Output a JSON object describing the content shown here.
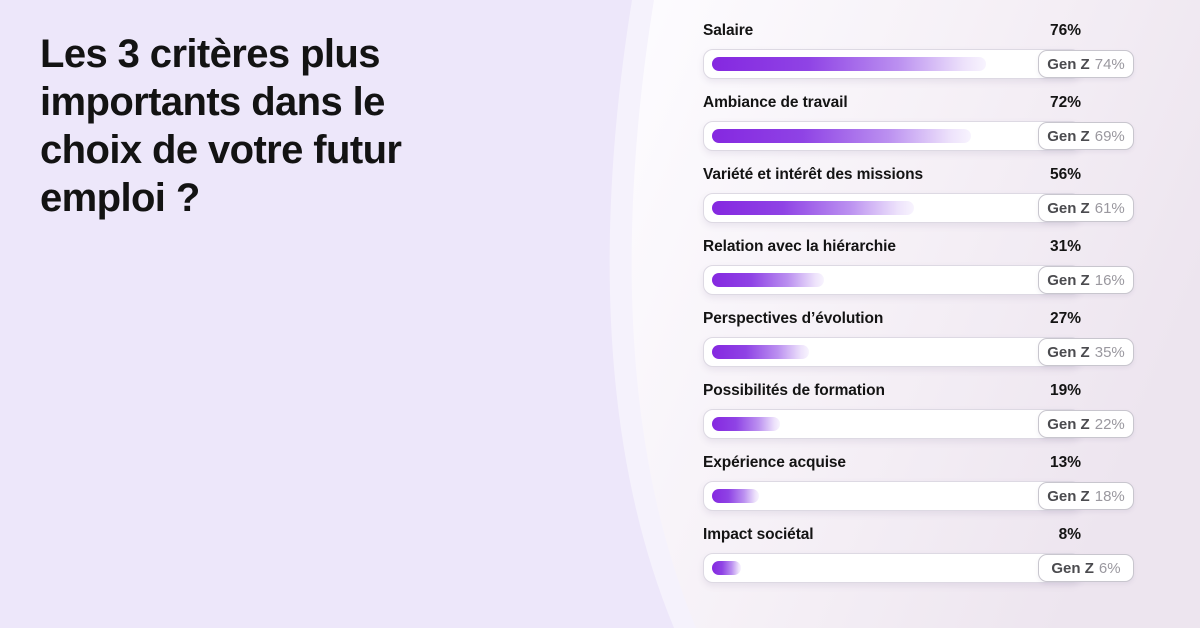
{
  "left_panel": {
    "title": "Les 3 critères plus\nimportants dans le\nchoix de votre futur\nemploi ?"
  },
  "chart_data": {
    "type": "bar",
    "orientation": "horizontal",
    "title": "Les 3 critères plus importants dans le choix de votre futur emploi ?",
    "categories": [
      "Salaire",
      "Ambiance de travail",
      "Variété et intérêt des missions",
      "Relation avec la hiérarchie",
      "Perspectives d’évolution",
      "Possibilités de formation",
      "Expérience acquise",
      "Impact sociétal"
    ],
    "series": [
      {
        "name": "",
        "values": [
          76,
          72,
          56,
          31,
          27,
          19,
          13,
          8
        ]
      },
      {
        "name": "Gen Z",
        "values": [
          74,
          69,
          61,
          16,
          35,
          22,
          18,
          6
        ]
      }
    ],
    "value_suffix": "%",
    "xlim": [
      0,
      100
    ],
    "grid": false,
    "legend_position": "badge-inline",
    "colors": {
      "background_left": "#EDE7FA",
      "background_right_gradient": [
        "#FDFCFF",
        "#EDE5EF"
      ],
      "bar_gradient_start": "#8528E0",
      "bar_gradient_end": "#F8F4FE",
      "track_fill": "#FFFFFF",
      "track_border": "#DDD9E3",
      "label_text": "#141414",
      "badge_label_text": "#4B4B4F",
      "badge_value_text": "#9A989F",
      "badge_border": "#C8C6CE"
    }
  }
}
